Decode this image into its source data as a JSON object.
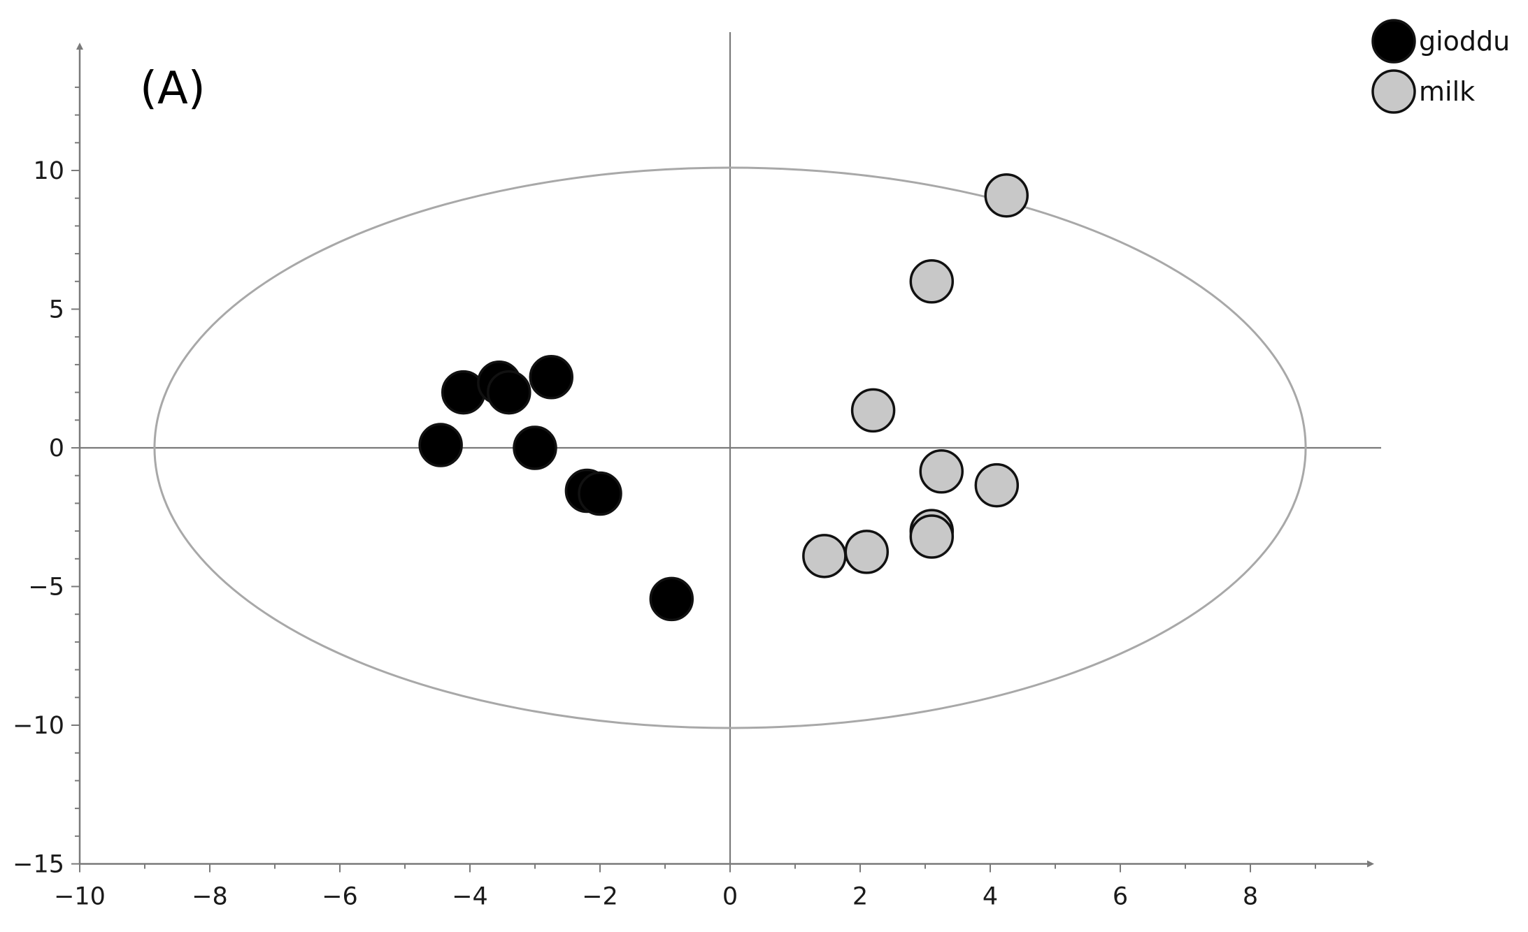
{
  "panel_label": "(A)",
  "colors": {
    "gioddu": "#000000",
    "milk": "#c8c8c8",
    "marker_edge": "#111111",
    "axis": "#7a7a7a",
    "ellipse": "#a8a8a8"
  },
  "chart_data": {
    "type": "scatter",
    "title": "",
    "xlabel": "",
    "ylabel": "",
    "xlim": [
      -10,
      10
    ],
    "ylim": [
      -15,
      14
    ],
    "x_ticks": [
      -10,
      -8,
      -6,
      -4,
      -2,
      0,
      2,
      4,
      6,
      8
    ],
    "x_tick_labels": [
      "−10",
      "−8",
      "−6",
      "−4",
      "−2",
      "0",
      "2",
      "4",
      "6",
      "8"
    ],
    "y_ticks": [
      10,
      5,
      0,
      -5,
      -10,
      -15
    ],
    "y_tick_labels": [
      "10",
      "5",
      "0",
      "−5",
      "−10",
      "−15"
    ],
    "grid": false,
    "legend_position": "top-right",
    "ellipse": {
      "cx": 0,
      "cy": 0,
      "rx": 8.85,
      "ry": 10.1
    },
    "series": [
      {
        "name": "gioddu",
        "points": [
          [
            -4.1,
            2.0
          ],
          [
            -3.55,
            2.35
          ],
          [
            -3.4,
            2.0
          ],
          [
            -2.75,
            2.55
          ],
          [
            -4.45,
            0.1
          ],
          [
            -3.0,
            0.0
          ],
          [
            -2.2,
            -1.55
          ],
          [
            -2.0,
            -1.65
          ],
          [
            -0.9,
            -5.45
          ]
        ]
      },
      {
        "name": "milk",
        "points": [
          [
            4.25,
            9.1
          ],
          [
            3.1,
            6.0
          ],
          [
            2.2,
            1.35
          ],
          [
            3.25,
            -0.85
          ],
          [
            4.1,
            -1.35
          ],
          [
            3.1,
            -3.0
          ],
          [
            3.1,
            -3.2
          ],
          [
            2.1,
            -3.75
          ],
          [
            1.45,
            -3.9
          ]
        ]
      }
    ]
  }
}
